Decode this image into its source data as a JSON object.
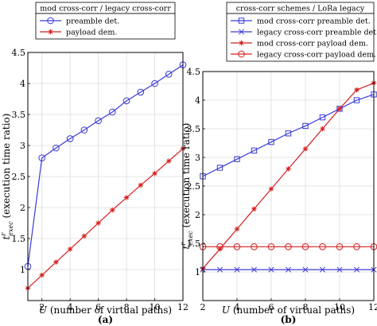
{
  "colors": {
    "blue": "#3b3bd6",
    "red": "#d42020",
    "grid": "#dddddd",
    "axis": "#000000"
  },
  "chart_data": [
    {
      "type": "line",
      "caption": "(a)",
      "legend_title": "mod cross-corr / legacy cross-corr",
      "legend_position": "top",
      "xlabel": "U (number of virtual paths)",
      "ylabel": "t^r_exec (execution time ratio)",
      "xlim": [
        1,
        12
      ],
      "ylim": [
        0.5,
        4.5
      ],
      "xticks": [
        2,
        4,
        6,
        8,
        10,
        12
      ],
      "yticks": [
        1,
        1.5,
        2,
        2.5,
        3,
        3.5,
        4,
        4.5
      ],
      "grid": true,
      "series": [
        {
          "name": "preamble det.",
          "color": "blue",
          "marker": "circle",
          "x": [
            1,
            2,
            3,
            4,
            5,
            6,
            7,
            8,
            9,
            10,
            11,
            12
          ],
          "y": [
            1.05,
            2.8,
            2.96,
            3.11,
            3.25,
            3.4,
            3.54,
            3.72,
            3.86,
            4.0,
            4.15,
            4.3
          ]
        },
        {
          "name": "payload dem.",
          "color": "red",
          "marker": "star",
          "x": [
            1,
            2,
            3,
            4,
            5,
            6,
            7,
            8,
            9,
            10,
            11,
            12
          ],
          "y": [
            0.7,
            0.91,
            1.12,
            1.33,
            1.54,
            1.75,
            1.96,
            2.16,
            2.36,
            2.55,
            2.75,
            2.95
          ]
        }
      ]
    },
    {
      "type": "line",
      "caption": "(b)",
      "legend_title": "cross-corr schemes / LoRa legacy",
      "legend_position": "top",
      "xlabel": "U (number of virtual paths)",
      "ylabel": "t^r_exec (execution time ratio)",
      "xlim": [
        2,
        12
      ],
      "ylim": [
        0.5,
        4.5
      ],
      "xticks": [
        2,
        4,
        6,
        8,
        10,
        12
      ],
      "yticks": [
        1,
        1.5,
        2,
        2.5,
        3,
        3.5,
        4,
        4.5
      ],
      "grid": true,
      "series": [
        {
          "name": "mod cross-corr preamble det.",
          "color": "blue",
          "marker": "square",
          "x": [
            2,
            3,
            4,
            5,
            6,
            7,
            8,
            9,
            10,
            11,
            12
          ],
          "y": [
            2.67,
            2.82,
            2.97,
            3.12,
            3.27,
            3.42,
            3.55,
            3.7,
            3.85,
            4.0,
            4.1
          ]
        },
        {
          "name": "legacy cross-corr preamble det.",
          "color": "blue",
          "marker": "x",
          "x": [
            2,
            3,
            4,
            5,
            6,
            7,
            8,
            9,
            10,
            11,
            12
          ],
          "y": [
            1.04,
            1.04,
            1.04,
            1.04,
            1.04,
            1.04,
            1.04,
            1.04,
            1.04,
            1.04,
            1.04
          ]
        },
        {
          "name": "mod cross-corr payload dem.",
          "color": "red",
          "marker": "star",
          "x": [
            2,
            3,
            4,
            5,
            6,
            7,
            8,
            9,
            10,
            11,
            12
          ],
          "y": [
            1.06,
            1.4,
            1.75,
            2.1,
            2.45,
            2.8,
            3.15,
            3.5,
            3.85,
            4.18,
            4.3
          ]
        },
        {
          "name": "legacy cross-corr payload dem.",
          "color": "red",
          "marker": "circle",
          "x": [
            2,
            3,
            4,
            5,
            6,
            7,
            8,
            9,
            10,
            11,
            12
          ],
          "y": [
            1.44,
            1.44,
            1.44,
            1.44,
            1.44,
            1.44,
            1.44,
            1.44,
            1.44,
            1.44,
            1.44
          ]
        }
      ]
    }
  ]
}
